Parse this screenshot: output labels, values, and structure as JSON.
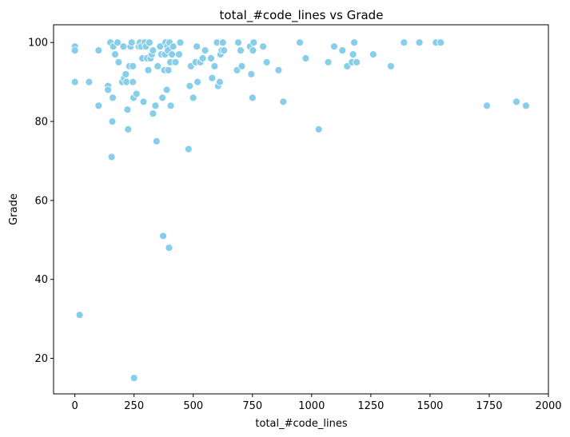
{
  "chart_data": {
    "type": "scatter",
    "title": "total_#code_lines vs Grade",
    "xlabel": "total_#code_lines",
    "ylabel": "Grade",
    "xlim": [
      -90,
      2000
    ],
    "ylim": [
      11,
      104.5
    ],
    "xticks": [
      0,
      250,
      500,
      750,
      1000,
      1250,
      1500,
      1750,
      2000
    ],
    "yticks": [
      20,
      40,
      60,
      80,
      100
    ],
    "grid": false,
    "marker_color": "#87CEEB",
    "marker_edge_color": "#ffffff",
    "points": [
      {
        "x": 0,
        "y": 99
      },
      {
        "x": 0,
        "y": 98
      },
      {
        "x": 0,
        "y": 90
      },
      {
        "x": 20,
        "y": 31
      },
      {
        "x": 60,
        "y": 90
      },
      {
        "x": 100,
        "y": 98
      },
      {
        "x": 100,
        "y": 84
      },
      {
        "x": 140,
        "y": 89
      },
      {
        "x": 140,
        "y": 88
      },
      {
        "x": 150,
        "y": 100
      },
      {
        "x": 155,
        "y": 71
      },
      {
        "x": 158,
        "y": 80
      },
      {
        "x": 160,
        "y": 86
      },
      {
        "x": 162,
        "y": 99
      },
      {
        "x": 170,
        "y": 97
      },
      {
        "x": 180,
        "y": 100
      },
      {
        "x": 185,
        "y": 95
      },
      {
        "x": 200,
        "y": 90
      },
      {
        "x": 205,
        "y": 99
      },
      {
        "x": 208,
        "y": 91
      },
      {
        "x": 215,
        "y": 92
      },
      {
        "x": 218,
        "y": 90
      },
      {
        "x": 222,
        "y": 83
      },
      {
        "x": 225,
        "y": 78
      },
      {
        "x": 230,
        "y": 94
      },
      {
        "x": 235,
        "y": 99
      },
      {
        "x": 240,
        "y": 100
      },
      {
        "x": 245,
        "y": 94
      },
      {
        "x": 245,
        "y": 90
      },
      {
        "x": 248,
        "y": 86
      },
      {
        "x": 250,
        "y": 15
      },
      {
        "x": 260,
        "y": 87
      },
      {
        "x": 270,
        "y": 99
      },
      {
        "x": 275,
        "y": 100
      },
      {
        "x": 280,
        "y": 99
      },
      {
        "x": 285,
        "y": 96
      },
      {
        "x": 290,
        "y": 85
      },
      {
        "x": 295,
        "y": 100
      },
      {
        "x": 300,
        "y": 99
      },
      {
        "x": 305,
        "y": 96
      },
      {
        "x": 310,
        "y": 93
      },
      {
        "x": 315,
        "y": 100
      },
      {
        "x": 320,
        "y": 96
      },
      {
        "x": 325,
        "y": 97
      },
      {
        "x": 330,
        "y": 98
      },
      {
        "x": 330,
        "y": 82
      },
      {
        "x": 340,
        "y": 84
      },
      {
        "x": 345,
        "y": 75
      },
      {
        "x": 350,
        "y": 94
      },
      {
        "x": 360,
        "y": 99
      },
      {
        "x": 365,
        "y": 97
      },
      {
        "x": 370,
        "y": 86
      },
      {
        "x": 373,
        "y": 51
      },
      {
        "x": 378,
        "y": 93
      },
      {
        "x": 380,
        "y": 97
      },
      {
        "x": 383,
        "y": 100
      },
      {
        "x": 388,
        "y": 88
      },
      {
        "x": 390,
        "y": 99
      },
      {
        "x": 393,
        "y": 98
      },
      {
        "x": 395,
        "y": 93
      },
      {
        "x": 398,
        "y": 48
      },
      {
        "x": 400,
        "y": 100
      },
      {
        "x": 403,
        "y": 95
      },
      {
        "x": 405,
        "y": 84
      },
      {
        "x": 410,
        "y": 97
      },
      {
        "x": 415,
        "y": 99
      },
      {
        "x": 425,
        "y": 95
      },
      {
        "x": 440,
        "y": 97
      },
      {
        "x": 445,
        "y": 100
      },
      {
        "x": 480,
        "y": 73
      },
      {
        "x": 485,
        "y": 89
      },
      {
        "x": 490,
        "y": 94
      },
      {
        "x": 500,
        "y": 86
      },
      {
        "x": 510,
        "y": 95
      },
      {
        "x": 515,
        "y": 99
      },
      {
        "x": 518,
        "y": 90
      },
      {
        "x": 530,
        "y": 95
      },
      {
        "x": 540,
        "y": 96
      },
      {
        "x": 550,
        "y": 98
      },
      {
        "x": 575,
        "y": 96
      },
      {
        "x": 580,
        "y": 91
      },
      {
        "x": 590,
        "y": 94
      },
      {
        "x": 600,
        "y": 100
      },
      {
        "x": 605,
        "y": 89
      },
      {
        "x": 612,
        "y": 90
      },
      {
        "x": 615,
        "y": 97
      },
      {
        "x": 620,
        "y": 98
      },
      {
        "x": 625,
        "y": 100
      },
      {
        "x": 630,
        "y": 98
      },
      {
        "x": 685,
        "y": 93
      },
      {
        "x": 690,
        "y": 100
      },
      {
        "x": 700,
        "y": 98
      },
      {
        "x": 705,
        "y": 94
      },
      {
        "x": 740,
        "y": 99
      },
      {
        "x": 745,
        "y": 92
      },
      {
        "x": 750,
        "y": 86
      },
      {
        "x": 752,
        "y": 98
      },
      {
        "x": 755,
        "y": 100
      },
      {
        "x": 795,
        "y": 99
      },
      {
        "x": 810,
        "y": 95
      },
      {
        "x": 860,
        "y": 93
      },
      {
        "x": 880,
        "y": 85
      },
      {
        "x": 950,
        "y": 100
      },
      {
        "x": 975,
        "y": 96
      },
      {
        "x": 1030,
        "y": 78
      },
      {
        "x": 1070,
        "y": 95
      },
      {
        "x": 1095,
        "y": 99
      },
      {
        "x": 1130,
        "y": 98
      },
      {
        "x": 1150,
        "y": 94
      },
      {
        "x": 1170,
        "y": 95
      },
      {
        "x": 1175,
        "y": 97
      },
      {
        "x": 1180,
        "y": 100
      },
      {
        "x": 1190,
        "y": 95
      },
      {
        "x": 1260,
        "y": 97
      },
      {
        "x": 1335,
        "y": 94
      },
      {
        "x": 1390,
        "y": 100
      },
      {
        "x": 1455,
        "y": 100
      },
      {
        "x": 1525,
        "y": 100
      },
      {
        "x": 1545,
        "y": 100
      },
      {
        "x": 1740,
        "y": 84
      },
      {
        "x": 1865,
        "y": 85
      },
      {
        "x": 1905,
        "y": 84
      }
    ]
  }
}
